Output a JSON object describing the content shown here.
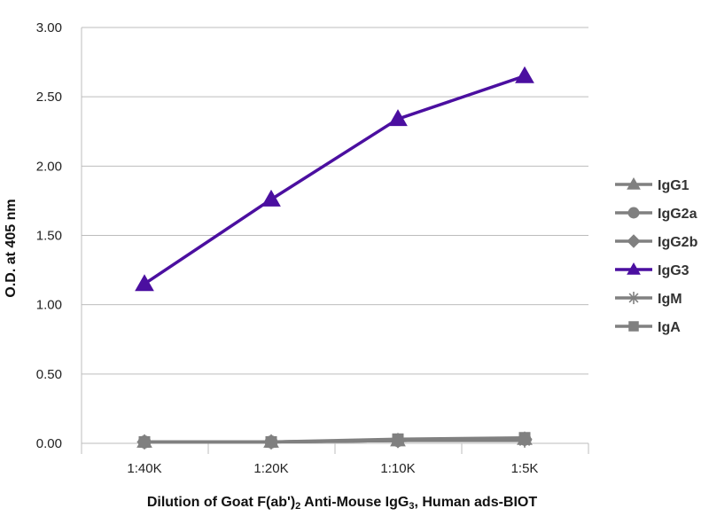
{
  "chart_data": {
    "type": "line",
    "title": "",
    "xlabel_parts": [
      "Dilution of Goat F(ab')",
      "2",
      " Anti-Mouse IgG",
      "3",
      ", Human ads-BIOT"
    ],
    "ylabel": "O.D. at 405 nm",
    "categories": [
      "1:40K",
      "1:20K",
      "1:10K",
      "1:5K"
    ],
    "ylim": [
      0,
      3
    ],
    "yticks": [
      "0.00",
      "0.50",
      "1.00",
      "1.50",
      "2.00",
      "2.50",
      "3.00"
    ],
    "grid": "horizontal",
    "legend_position": "right",
    "series": [
      {
        "name": "IgG1",
        "marker": "triangle",
        "color": "#808080",
        "values": [
          0.01,
          0.01,
          0.02,
          0.03
        ]
      },
      {
        "name": "IgG2a",
        "marker": "circle",
        "color": "#808080",
        "values": [
          0.01,
          0.01,
          0.02,
          0.03
        ]
      },
      {
        "name": "IgG2b",
        "marker": "diamond",
        "color": "#808080",
        "values": [
          0.01,
          0.01,
          0.02,
          0.03
        ]
      },
      {
        "name": "IgG3",
        "marker": "triangle",
        "color": "#4b0fa0",
        "values": [
          1.15,
          1.76,
          2.34,
          2.65
        ]
      },
      {
        "name": "IgM",
        "marker": "star",
        "color": "#808080",
        "values": [
          0.01,
          0.01,
          0.02,
          0.02
        ]
      },
      {
        "name": "IgA",
        "marker": "square",
        "color": "#808080",
        "values": [
          0.01,
          0.01,
          0.03,
          0.04
        ]
      }
    ]
  }
}
